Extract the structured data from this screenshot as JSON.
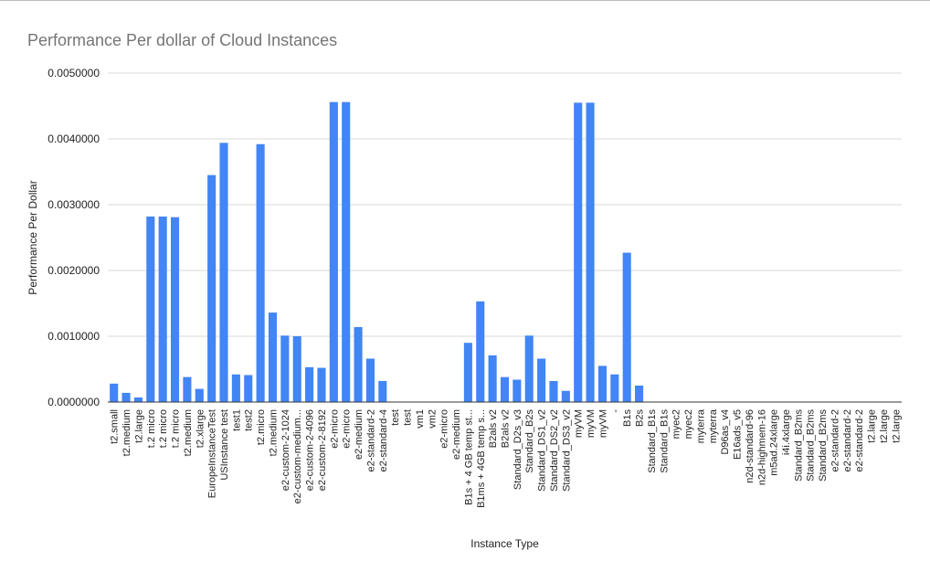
{
  "chart_data": {
    "type": "bar",
    "title": "Performance Per dollar of Cloud Instances",
    "xlabel": "Instance Type",
    "ylabel": "Performance Per Dollar",
    "ylim": [
      0,
      0.005
    ],
    "yticks": [
      "0.0000000",
      "0.0010000",
      "0.0020000",
      "0.0030000",
      "0.0040000",
      "0.0050000"
    ],
    "grid": true,
    "legend": "none",
    "bar_color": "#4285f4",
    "categories": [
      "t2.small",
      "t2.medium",
      "t2.large",
      "t.2 micro",
      "t.2 micro",
      "t.2 micro",
      "t2.medium",
      "t2.xlarge",
      "EuropeInstanceTest",
      "USInstance test",
      "test1",
      "test2",
      "t2.micro",
      "t2.medium",
      "e2-custom-2-1024",
      "e2-custom-medium...",
      "e2-custom-2-4096",
      "e2-custom-2-8192",
      "e2-micro",
      "e2-micro",
      "e2-medium",
      "e2-standard-2",
      "e2-standard-4",
      "test",
      "test",
      "vm1",
      "vm2",
      "e2-micro",
      "e2-medium",
      "B1s + 4 GB temp st...",
      "B1ms + 4GB temp s...",
      "B2als v2",
      "B2als v2",
      "Standard_D2s_v3",
      "Standard_B2s",
      "Standard_DS1_v2",
      "Standard_DS2_v2",
      "Standard_DS3_v2",
      "myVM",
      "myVM",
      "myVM",
      "-",
      "B1s",
      "B2s",
      "Standard_B1s",
      "Standard_B1s",
      "myec2",
      "myec2",
      "myterra",
      "myterra",
      "D96as_v4",
      "E16ads_v5",
      "n2d-standard-96",
      "n2d-highmem-16",
      "m5ad.24xlarge",
      "i4i.4xlarge",
      "Standard_B2ms",
      "Standard_B2ms",
      "Standard_B2ms",
      "e2-standard-2",
      "e2-standard-2",
      "e2-standard-2",
      "t2.large",
      "t2.large",
      "t2.large"
    ],
    "values": [
      0.00028,
      0.00014,
      7e-05,
      0.00282,
      0.00282,
      0.00281,
      0.00038,
      0.0002,
      0.00345,
      0.00394,
      0.00042,
      0.00041,
      0.00392,
      0.00136,
      0.00101,
      0.001,
      0.00053,
      0.00052,
      0.00456,
      0.00456,
      0.00114,
      0.00066,
      0.00032,
      0,
      0,
      0,
      0,
      0,
      0,
      0.0009,
      0.00153,
      0.00071,
      0.00038,
      0.00034,
      0.00101,
      0.00066,
      0.00032,
      0.00017,
      0.00455,
      0.00455,
      0.00055,
      0.00042,
      0.00227,
      0.00025,
      0,
      0,
      0,
      0,
      0,
      0,
      0,
      0,
      0,
      0,
      0,
      0,
      0,
      0,
      0,
      0,
      0,
      0,
      0,
      0,
      0
    ]
  }
}
